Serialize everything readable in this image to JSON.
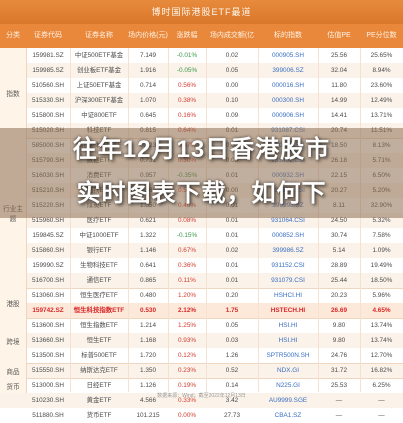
{
  "sheet": {
    "title": "博时国际港股ETF最道",
    "headers": [
      "分类",
      "证券代码",
      "证券名称",
      "场内价格(元)",
      "涨跌幅",
      "场内成交额(亿元)",
      "标的指数",
      "估值PE",
      "PE分位数"
    ],
    "groups": [
      "指数",
      "行业主题",
      "港股",
      "跨境",
      "商品",
      "货币"
    ],
    "rows": [
      [
        "159981.SZ",
        "中证500ETF基金",
        "7.149",
        "-0.01%",
        "0.02",
        "000905.SH",
        "25.56",
        "25.65%"
      ],
      [
        "159985.SZ",
        "创业板ETF基金",
        "1.916",
        "-0.05%",
        "0.05",
        "399006.SZ",
        "32.04",
        "8.94%"
      ],
      [
        "510560.SH",
        "上证50ETF基金",
        "0.714",
        "0.56%",
        "0.00",
        "000016.SH",
        "11.80",
        "23.60%"
      ],
      [
        "515330.SH",
        "沪深300ETF基金",
        "1.070",
        "0.38%",
        "0.10",
        "000300.SH",
        "14.99",
        "12.49%"
      ],
      [
        "515800.SH",
        "中证800ETF",
        "0.645",
        "0.16%",
        "0.09",
        "000906.SH",
        "14.41",
        "13.71%"
      ],
      [
        "515020.SH",
        "科技ETF",
        "0.815",
        "0.64%",
        "0.01",
        "931087.CSI",
        "20.74",
        "11.51%"
      ],
      [
        "585000.SH",
        "科创新材料ETF",
        "0.823",
        "0.37%",
        "0.02",
        "000981.SH",
        "18.50",
        "8.13%"
      ],
      [
        "515790.SH",
        "数据ETF",
        "0.731",
        "0.30%",
        "0.05",
        "931001.CSI",
        "26.18",
        "5.71%"
      ],
      [
        "516030.SH",
        "消费ETF",
        "0.957",
        "-0.35%",
        "0.01",
        "000932.SH",
        "22.15",
        "6.50%"
      ],
      [
        "515210.SH",
        "钢铁ETF",
        "1.288",
        "0.55%",
        "0.00",
        "930606.CSI",
        "20.27",
        "5.20%"
      ],
      [
        "515220.SH",
        "煤炭ETF",
        "1.050",
        "0.40%",
        "0.01",
        "399998.SZ",
        "8.11",
        "32.90%"
      ],
      [
        "515960.SH",
        "医疗ETF",
        "0.621",
        "0.08%",
        "0.01",
        "931064.CSI",
        "24.50",
        "5.32%"
      ],
      [
        "159845.SZ",
        "中证1000ETF",
        "1.322",
        "-0.15%",
        "0.01",
        "000852.SH",
        "30.74",
        "7.58%"
      ],
      [
        "515860.SH",
        "银行ETF",
        "1.146",
        "0.67%",
        "0.02",
        "399986.SZ",
        "5.14",
        "1.09%"
      ],
      [
        "159990.SZ",
        "生物科技ETF",
        "0.641",
        "0.36%",
        "0.01",
        "931152.CSI",
        "28.89",
        "19.49%"
      ],
      [
        "516700.SH",
        "通信ETF",
        "0.865",
        "0.11%",
        "0.01",
        "931079.CSI",
        "25.44",
        "18.50%"
      ],
      [
        "513060.SH",
        "恒生医疗ETF",
        "0.480",
        "1.20%",
        "0.20",
        "HSHCI.HI",
        "20.23",
        "5.96%"
      ],
      [
        "159742.SZ",
        "恒生科技指数ETF",
        "0.530",
        "2.12%",
        "1.75",
        "HSTECH.HI",
        "26.69",
        "4.65%"
      ],
      [
        "513600.SH",
        "恒生指数ETF",
        "1.214",
        "1.25%",
        "0.05",
        "HSI.HI",
        "9.80",
        "13.74%"
      ],
      [
        "513660.SH",
        "恒生ETF",
        "1.168",
        "0.93%",
        "0.03",
        "HSI.HI",
        "9.80",
        "13.74%"
      ],
      [
        "513500.SH",
        "标普500ETF",
        "1.720",
        "0.12%",
        "1.26",
        "SPTR500N.SH",
        "24.76",
        "12.70%"
      ],
      [
        "515550.SH",
        "纳斯达克ETF",
        "1.350",
        "0.23%",
        "0.52",
        "NDX.GI",
        "31.72",
        "16.82%"
      ],
      [
        "513000.SH",
        "日经ETF",
        "1.126",
        "0.19%",
        "0.14",
        "N225.GI",
        "25.53",
        "6.25%"
      ],
      [
        "510230.SH",
        "黄金ETF",
        "4.566",
        "0.33%",
        "3.42",
        "AU9999.SGE",
        "—",
        "—"
      ],
      [
        "511880.SH",
        "货币ETF",
        "101.215",
        "0.00%",
        "27.73",
        "CBA1.SZ",
        "—",
        "—"
      ]
    ]
  },
  "overlay": {
    "headline_line1": "往年12月13日香港股市",
    "headline_line2": "实时图表下载，如何下"
  },
  "footer": "数据来源：Wind；截至2022年12月13日"
}
